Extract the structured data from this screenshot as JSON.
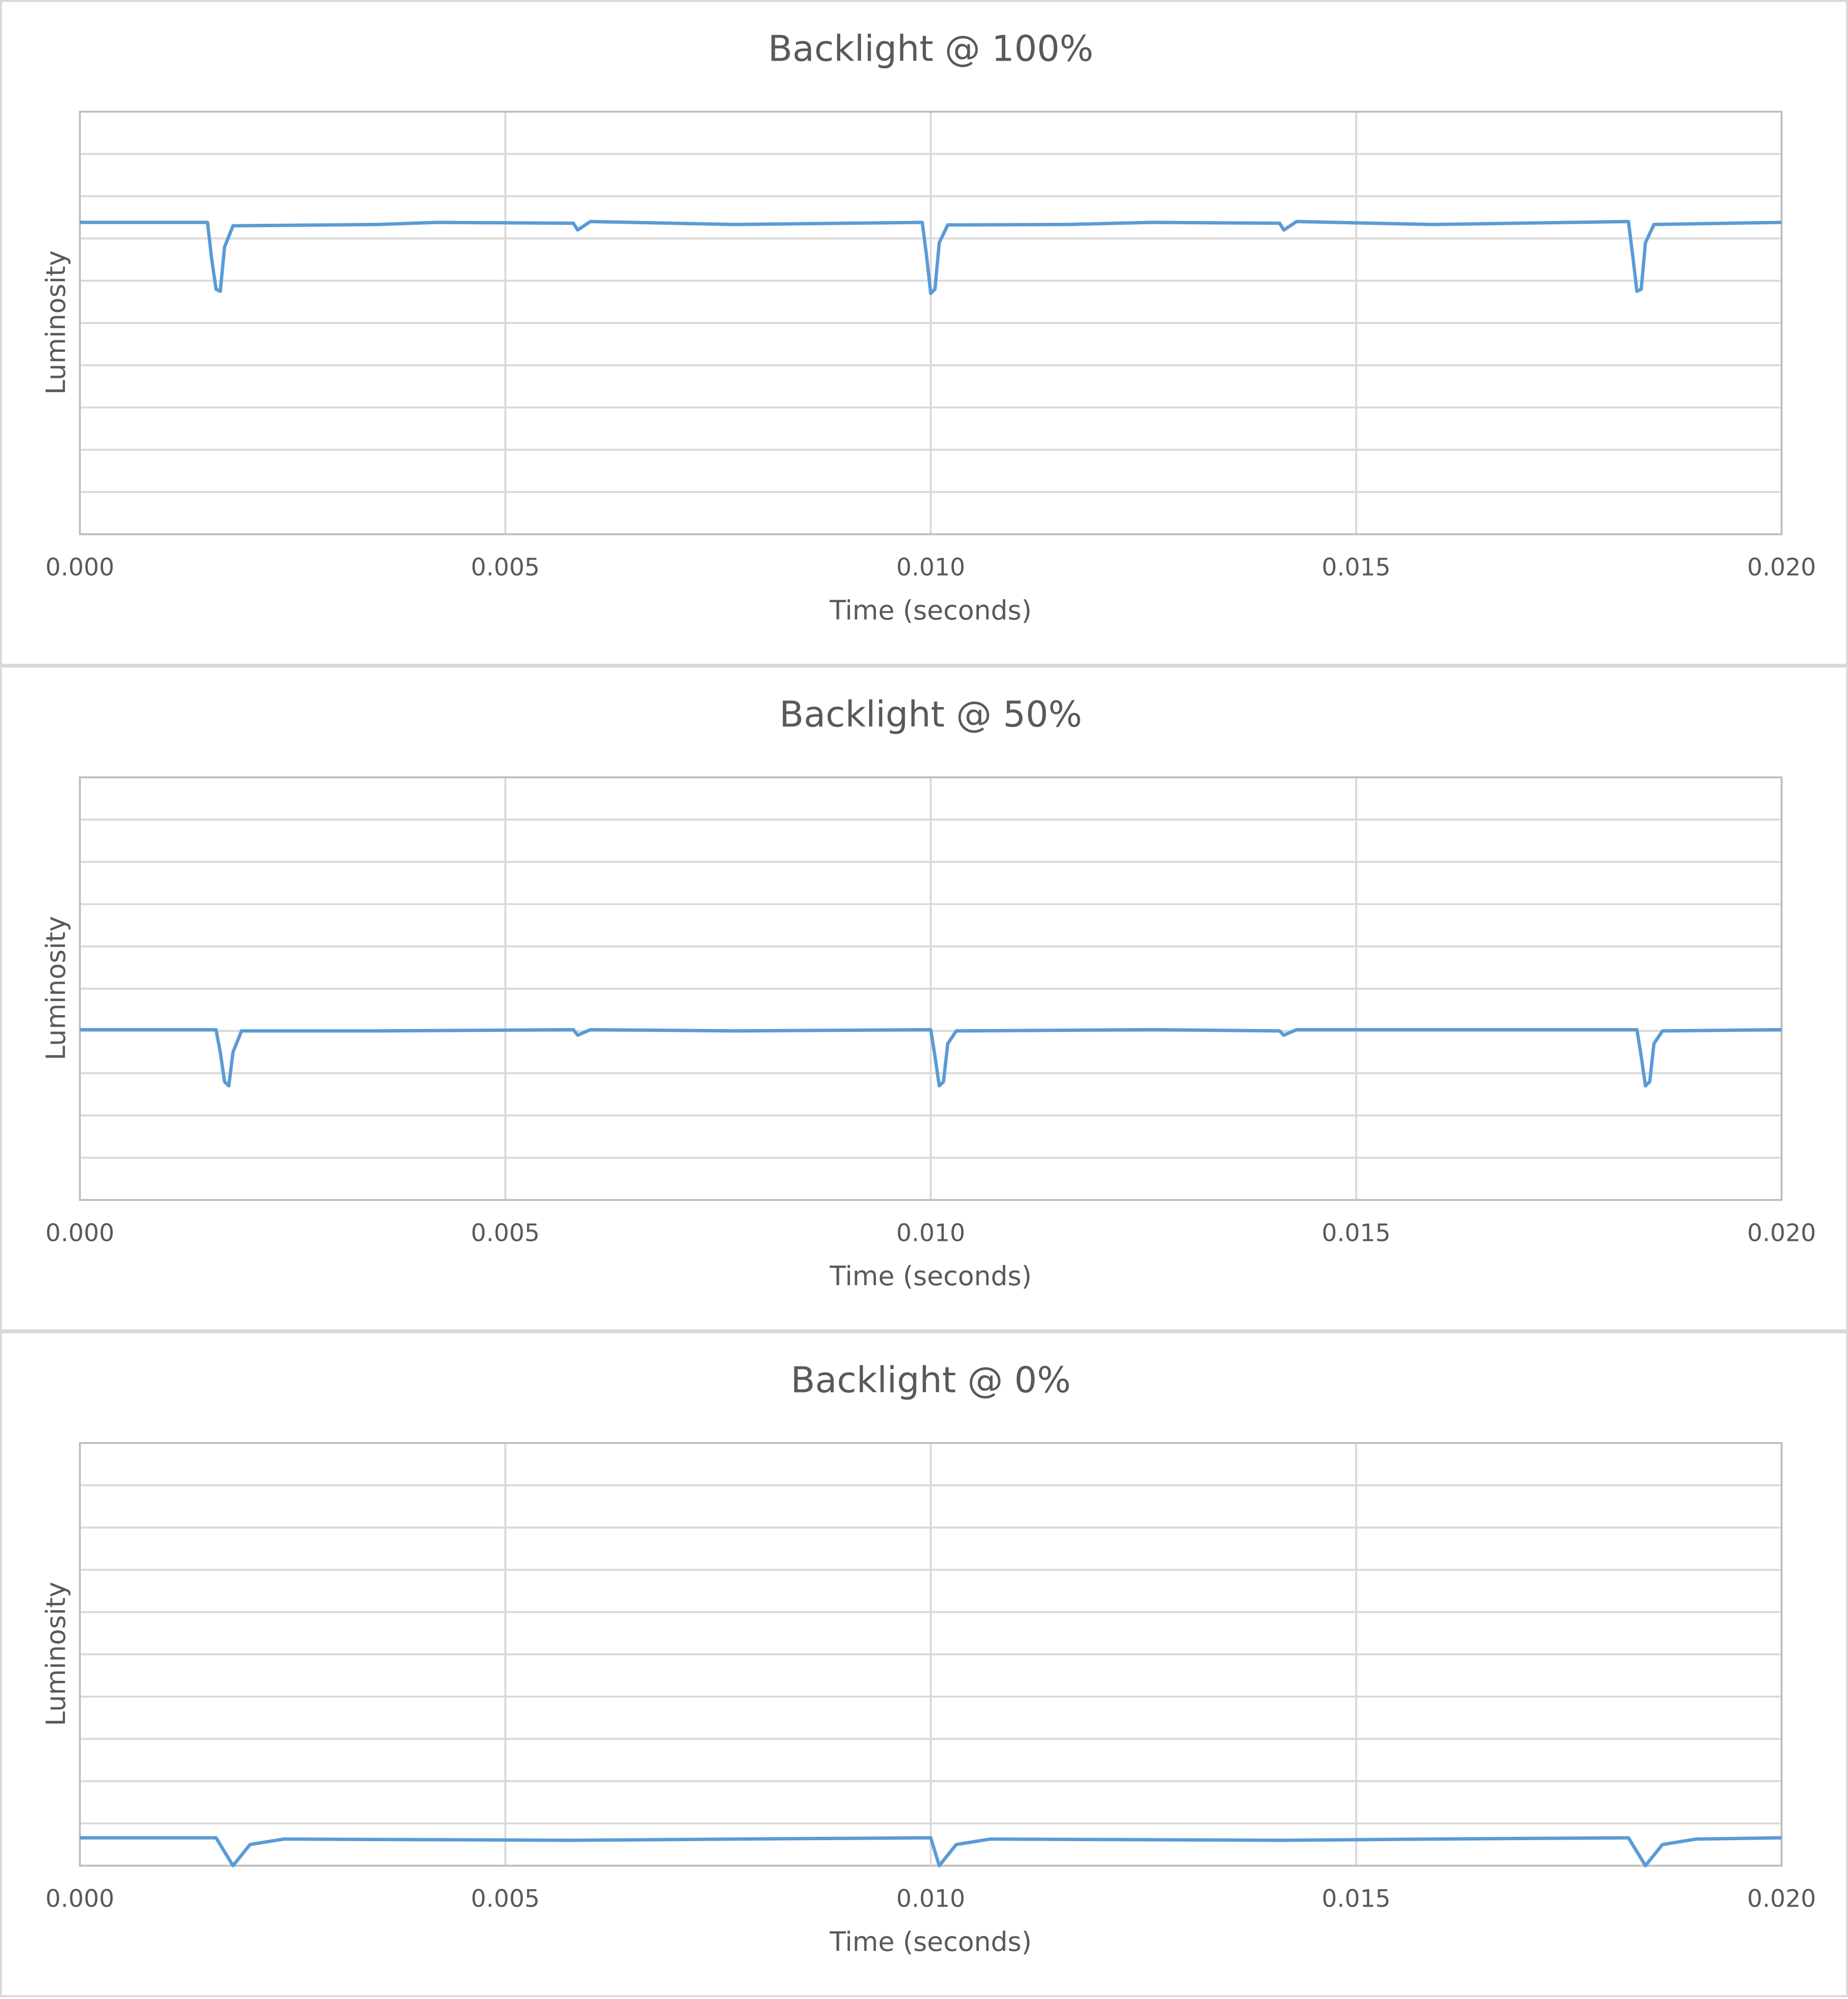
{
  "chart_data": [
    {
      "type": "line",
      "title": "Backlight @ 100%",
      "x_label": "Time (seconds)",
      "y_label": "Luminosity",
      "xlim": [
        0,
        0.02
      ],
      "ylim": [
        0,
        10
      ],
      "xticks": [
        {
          "value": 0,
          "label": "0.000"
        },
        0.005,
        {
          "value": 0.01,
          "label": "0.010"
        },
        0.015,
        {
          "value": 0.02,
          "label": "0.020"
        }
      ],
      "yticks": [
        0,
        1,
        2,
        3,
        4,
        5,
        6,
        7,
        8,
        9,
        10
      ],
      "grid": true,
      "series": [
        {
          "name": "Luminosity",
          "color": "#5b9bd5",
          "x": [
            0,
            0.0015,
            0.00155,
            0.0016,
            0.00165,
            0.0017,
            0.0018,
            0.0035,
            0.0042,
            0.0058,
            0.00585,
            0.006,
            0.0077,
            0.0099,
            0.00995,
            0.01,
            0.01005,
            0.0101,
            0.0102,
            0.0116,
            0.0126,
            0.0141,
            0.01415,
            0.0143,
            0.0159,
            0.0182,
            0.01825,
            0.0183,
            0.01835,
            0.0184,
            0.0185,
            0.02
          ],
          "values": [
            7.38,
            7.38,
            6.5,
            5.8,
            5.75,
            6.8,
            7.3,
            7.33,
            7.38,
            7.36,
            7.2,
            7.4,
            7.33,
            7.38,
            6.6,
            5.7,
            5.8,
            6.9,
            7.32,
            7.33,
            7.38,
            7.36,
            7.2,
            7.4,
            7.33,
            7.4,
            6.6,
            5.75,
            5.8,
            6.9,
            7.33,
            7.38
          ]
        }
      ]
    },
    {
      "type": "line",
      "title": "Backlight @ 50%",
      "x_label": "Time (seconds)",
      "y_label": "Luminosity",
      "xlim": [
        0,
        0.02
      ],
      "ylim": [
        0,
        10
      ],
      "xticks": [
        {
          "value": 0,
          "label": "0.000"
        },
        0.005,
        {
          "value": 0.01,
          "label": "0.010"
        },
        0.015,
        {
          "value": 0.02,
          "label": "0.020"
        }
      ],
      "yticks": [
        0,
        1,
        2,
        3,
        4,
        5,
        6,
        7,
        8,
        9,
        10
      ],
      "grid": true,
      "series": [
        {
          "name": "Luminosity",
          "color": "#5b9bd5",
          "x": [
            0,
            0.0016,
            0.00165,
            0.0017,
            0.00175,
            0.0018,
            0.0019,
            0.0035,
            0.0058,
            0.00585,
            0.006,
            0.0077,
            0.01,
            0.01005,
            0.0101,
            0.01015,
            0.0102,
            0.0103,
            0.0126,
            0.0141,
            0.01415,
            0.0143,
            0.0183,
            0.01835,
            0.0184,
            0.01845,
            0.0185,
            0.0186,
            0.02
          ],
          "values": [
            4.03,
            4.03,
            3.5,
            2.8,
            2.7,
            3.5,
            4.0,
            4.0,
            4.03,
            3.9,
            4.03,
            4.0,
            4.03,
            3.4,
            2.7,
            2.8,
            3.7,
            4.0,
            4.03,
            4.0,
            3.9,
            4.03,
            4.03,
            3.4,
            2.7,
            2.8,
            3.7,
            4.0,
            4.03
          ]
        }
      ]
    },
    {
      "type": "line",
      "title": "Backlight @ 0%",
      "x_label": "Time (seconds)",
      "y_label": "Luminosity",
      "xlim": [
        0,
        0.02
      ],
      "ylim": [
        0,
        10
      ],
      "xticks": [
        {
          "value": 0,
          "label": "0.000"
        },
        0.005,
        {
          "value": 0.01,
          "label": "0.010"
        },
        0.015,
        {
          "value": 0.02,
          "label": "0.020"
        }
      ],
      "yticks": [
        0,
        1,
        2,
        3,
        4,
        5,
        6,
        7,
        8,
        9,
        10
      ],
      "grid": true,
      "series": [
        {
          "name": "Luminosity",
          "color": "#5b9bd5",
          "x": [
            0,
            0.0016,
            0.0018,
            0.002,
            0.0024,
            0.0058,
            0.0077,
            0.01,
            0.0101,
            0.0103,
            0.0107,
            0.0141,
            0.0159,
            0.0182,
            0.0184,
            0.0186,
            0.019,
            0.02
          ],
          "values": [
            0.66,
            0.66,
            0,
            0.5,
            0.63,
            0.6,
            0.63,
            0.66,
            0,
            0.5,
            0.63,
            0.6,
            0.63,
            0.66,
            0,
            0.5,
            0.63,
            0.66
          ]
        }
      ]
    }
  ]
}
